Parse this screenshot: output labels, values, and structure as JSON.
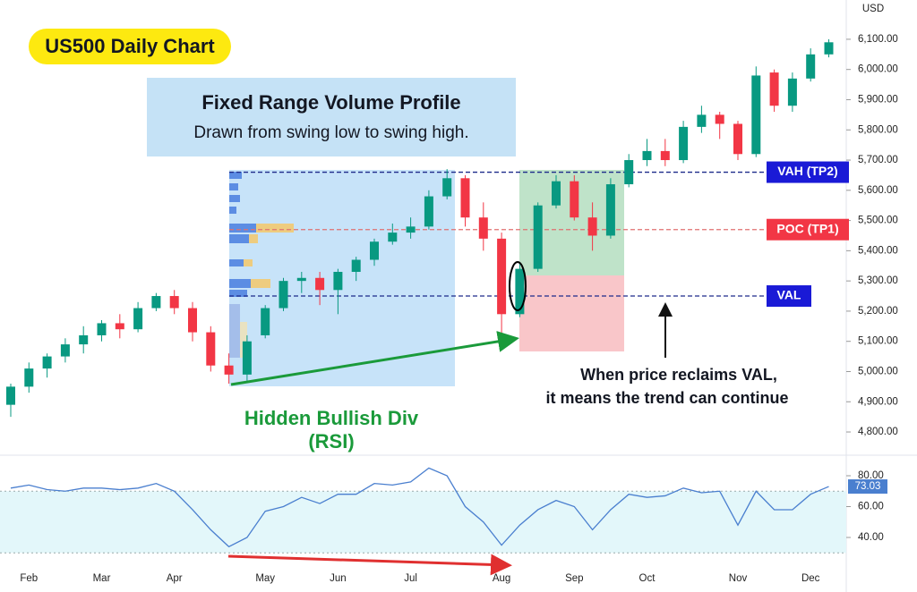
{
  "chart_data": {
    "type": "candlestick",
    "title": "US500 Daily Chart",
    "currency": "USD",
    "categories": [
      null,
      "Feb",
      null,
      null,
      null,
      "Mar",
      null,
      null,
      null,
      "Apr",
      null,
      null,
      null,
      null,
      "May",
      null,
      null,
      null,
      "Jun",
      null,
      null,
      null,
      "Jul",
      null,
      null,
      null,
      null,
      "Aug",
      null,
      null,
      null,
      "Sep",
      null,
      null,
      null,
      "Oct",
      null,
      null,
      null,
      null,
      "Nov",
      null,
      null,
      null,
      "Dec",
      null
    ],
    "open": [
      4890,
      4950,
      5010,
      5050,
      5090,
      5120,
      5160,
      5140,
      5210,
      5250,
      5210,
      5130,
      5020,
      4990,
      5120,
      5210,
      5300,
      5310,
      5270,
      5330,
      5370,
      5430,
      5460,
      5480,
      5580,
      5640,
      5510,
      5440,
      5190,
      5340,
      5550,
      5630,
      5510,
      5450,
      5620,
      5700,
      5730,
      5700,
      5810,
      5850,
      5820,
      5720,
      5990,
      5880,
      5970,
      6050
    ],
    "high": [
      4960,
      5030,
      5060,
      5110,
      5150,
      5170,
      5190,
      5230,
      5260,
      5270,
      5230,
      5150,
      5060,
      5120,
      5220,
      5310,
      5330,
      5330,
      5340,
      5380,
      5440,
      5490,
      5510,
      5600,
      5670,
      5650,
      5560,
      5460,
      5360,
      5560,
      5650,
      5650,
      5560,
      5640,
      5720,
      5770,
      5770,
      5830,
      5880,
      5860,
      5830,
      6010,
      6000,
      5990,
      6070,
      6100
    ],
    "low": [
      4850,
      4930,
      4980,
      5030,
      5060,
      5100,
      5110,
      5130,
      5200,
      5190,
      5100,
      5000,
      4960,
      4970,
      5110,
      5200,
      5260,
      5220,
      5190,
      5300,
      5350,
      5420,
      5440,
      5470,
      5570,
      5480,
      5400,
      5120,
      5180,
      5330,
      5540,
      5500,
      5400,
      5440,
      5610,
      5680,
      5680,
      5690,
      5790,
      5770,
      5700,
      5710,
      5860,
      5860,
      5960,
      6040
    ],
    "close": [
      4950,
      5010,
      5050,
      5090,
      5120,
      5160,
      5140,
      5210,
      5250,
      5210,
      5130,
      5020,
      4990,
      5100,
      5210,
      5300,
      5310,
      5270,
      5330,
      5370,
      5430,
      5460,
      5480,
      5580,
      5640,
      5510,
      5440,
      5190,
      5340,
      5550,
      5630,
      5510,
      5450,
      5620,
      5700,
      5730,
      5700,
      5810,
      5850,
      5820,
      5720,
      5980,
      5880,
      5970,
      6050,
      6090
    ],
    "up_color": "#089981",
    "down_color": "#f23645",
    "ylim": [
      4735,
      6230
    ],
    "yticks": [
      {
        "value": 4800,
        "label": "4,800.00"
      },
      {
        "value": 4900,
        "label": "4,900.00"
      },
      {
        "value": 5000,
        "label": "5,000.00"
      },
      {
        "value": 5100,
        "label": "5,100.00"
      },
      {
        "value": 5200,
        "label": "5,200.00"
      },
      {
        "value": 5300,
        "label": "5,300.00"
      },
      {
        "value": 5400,
        "label": "5,400.00"
      },
      {
        "value": 5500,
        "label": "5,500.00"
      },
      {
        "value": 5600,
        "label": "5,600.00"
      },
      {
        "value": 5700,
        "label": "5,700.00"
      },
      {
        "value": 5800,
        "label": "5,800.00"
      },
      {
        "value": 5900,
        "label": "5,900.00"
      },
      {
        "value": 6000,
        "label": "6,000.00"
      },
      {
        "value": 6100,
        "label": "6,100.00"
      }
    ],
    "levels": [
      {
        "label": "VAH (TP2)",
        "value": 5660,
        "color": "#1a1ad6"
      },
      {
        "label": "POC (TP1)",
        "value": 5470,
        "color": "#f23645"
      },
      {
        "label": "VAL",
        "value": 5250,
        "color": "#1a1ad6"
      }
    ],
    "volume_profile_title": "Fixed Range Volume Profile",
    "volume_profile_subtitle": "Drawn from swing low to swing high.",
    "divergence_label": [
      "Hidden Bullish Div",
      "(RSI)"
    ],
    "note": [
      "When price reclaims VAL,",
      "it means the trend can continue"
    ],
    "rsi": {
      "values": [
        72,
        74,
        71,
        70,
        72,
        72,
        71,
        72,
        75,
        70,
        58,
        45,
        34,
        40,
        57,
        60,
        66,
        62,
        68,
        68,
        75,
        74,
        76,
        85,
        80,
        60,
        50,
        35,
        48,
        58,
        64,
        60,
        45,
        58,
        68,
        66,
        67,
        72,
        69,
        70,
        48,
        70,
        58,
        58,
        68,
        73.03
      ],
      "color": "#4a7fcf",
      "ylim": [
        20.3,
        91.6
      ],
      "band": [
        30,
        70
      ],
      "yticks": [
        {
          "value": 40,
          "label": "40.00"
        },
        {
          "value": 60,
          "label": "60.00"
        },
        {
          "value": 80,
          "label": "80.00"
        }
      ]
    }
  }
}
